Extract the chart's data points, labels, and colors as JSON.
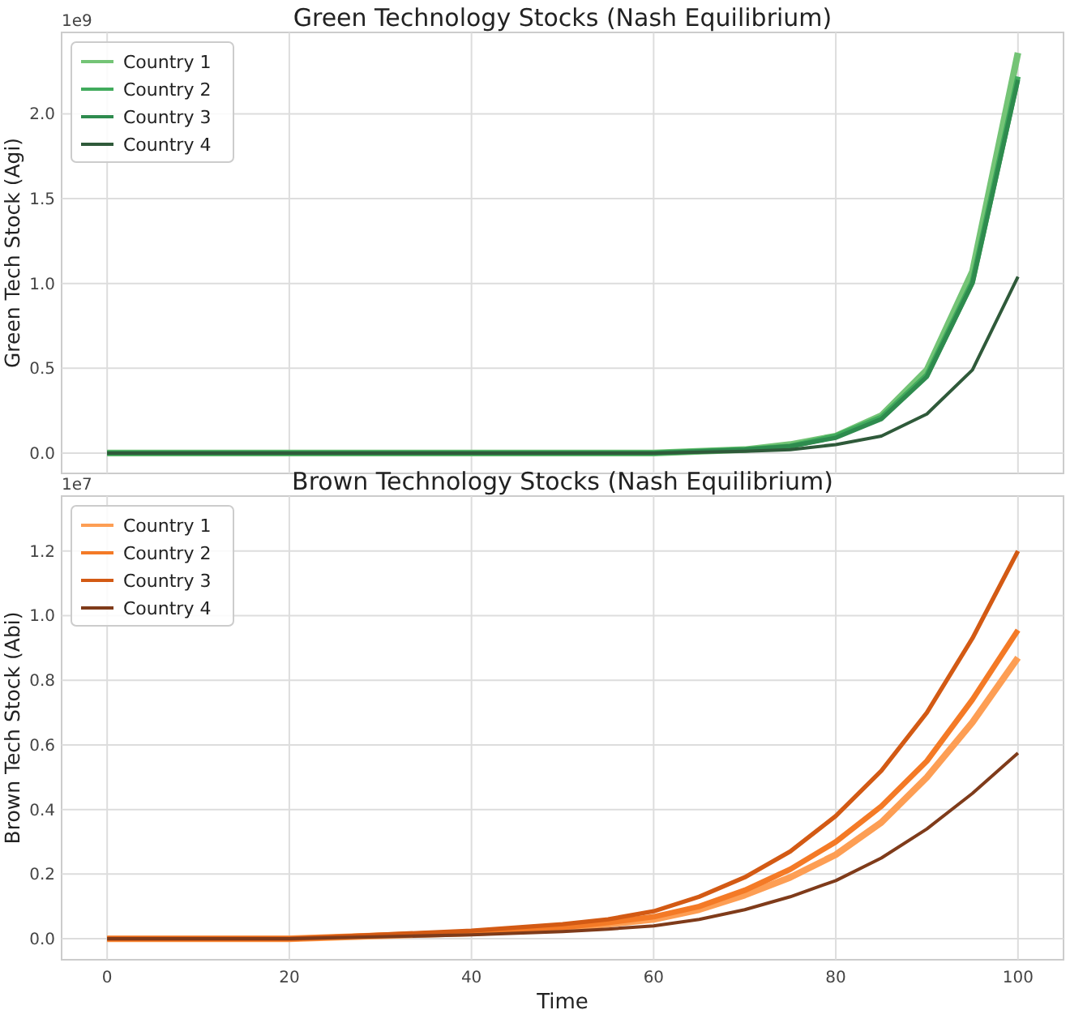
{
  "chart_data": [
    {
      "type": "line",
      "title": "Green Technology Stocks (Nash Equilibrium)",
      "ylabel": "Green Tech Stock (Agi)",
      "annotations": [
        "1e9"
      ],
      "legend": "top left",
      "grid": true,
      "line_style": "solid",
      "tick_labels": "y",
      "x": [
        0,
        40,
        60,
        70,
        75,
        80,
        85,
        90,
        95,
        100
      ],
      "xlim": [
        -5,
        105
      ],
      "xticks": [
        {
          "value": 0,
          "label": null
        },
        {
          "value": 20,
          "label": null
        },
        {
          "value": 40,
          "label": null
        },
        {
          "value": 60,
          "label": null
        },
        {
          "value": 80,
          "label": null
        },
        {
          "value": 100,
          "label": null
        }
      ],
      "ylim": [
        -0.12,
        2.48
      ],
      "yticks": [
        {
          "value": 0,
          "label": "0.0"
        },
        {
          "value": 0.5,
          "label": "0.5"
        },
        {
          "value": 1,
          "label": "1.0"
        },
        {
          "value": 1.5,
          "label": "1.5"
        },
        {
          "value": 2,
          "label": "2.0"
        }
      ],
      "series": [
        {
          "name": "Country 1",
          "color": "#74c476",
          "values": [
            0,
            0,
            0,
            0.02,
            0.05,
            0.1,
            0.22,
            0.49,
            1.07,
            2.36
          ]
        },
        {
          "name": "Country 2",
          "color": "#41ab5d",
          "values": [
            0,
            0,
            0,
            0.02,
            0.04,
            0.1,
            0.21,
            0.46,
            1.01,
            2.22
          ]
        },
        {
          "name": "Country 3",
          "color": "#2e8b4e",
          "values": [
            0,
            0,
            0,
            0.02,
            0.04,
            0.09,
            0.2,
            0.45,
            1.0,
            2.2
          ]
        },
        {
          "name": "Country 4",
          "color": "#2f5a3a",
          "values": [
            0,
            0,
            0,
            0.01,
            0.02,
            0.05,
            0.1,
            0.23,
            0.49,
            1.04
          ]
        }
      ]
    },
    {
      "type": "line",
      "title": "Brown Technology Stocks (Nash Equilibrium)",
      "ylabel": "Brown Tech Stock (Abi)",
      "xlabel": "Time",
      "annotations": [
        "1e7"
      ],
      "legend": "top left",
      "grid": true,
      "line_style": "solid",
      "x": [
        0,
        20,
        40,
        50,
        55,
        60,
        65,
        70,
        75,
        80,
        85,
        90,
        95,
        100
      ],
      "xlim": [
        -5,
        105
      ],
      "xticks": [
        0,
        20,
        40,
        60,
        80,
        100
      ],
      "ylim": [
        -0.065,
        1.37
      ],
      "yticks": [
        {
          "value": 0,
          "label": "0.0"
        },
        {
          "value": 0.2,
          "label": "0.2"
        },
        {
          "value": 0.4,
          "label": "0.4"
        },
        {
          "value": 0.6,
          "label": "0.6"
        },
        {
          "value": 0.8,
          "label": "0.8"
        },
        {
          "value": 1,
          "label": "1.0"
        },
        {
          "value": 1.2,
          "label": "1.2"
        }
      ],
      "series": [
        {
          "name": "Country 1",
          "color": "#fd9e54",
          "values": [
            0,
            0,
            0.018,
            0.032,
            0.045,
            0.06,
            0.09,
            0.135,
            0.19,
            0.26,
            0.36,
            0.5,
            0.67,
            0.87
          ]
        },
        {
          "name": "Country 2",
          "color": "#f47a26",
          "values": [
            0,
            0,
            0.02,
            0.035,
            0.05,
            0.068,
            0.1,
            0.15,
            0.215,
            0.3,
            0.41,
            0.55,
            0.74,
            0.955
          ]
        },
        {
          "name": "Country 3",
          "color": "#d35a14",
          "values": [
            0,
            0,
            0.025,
            0.045,
            0.06,
            0.085,
            0.13,
            0.19,
            0.27,
            0.38,
            0.52,
            0.7,
            0.93,
            1.2
          ]
        },
        {
          "name": "Country 4",
          "color": "#7f3b1a",
          "values": [
            0,
            0,
            0.012,
            0.022,
            0.03,
            0.04,
            0.06,
            0.09,
            0.13,
            0.18,
            0.25,
            0.34,
            0.45,
            0.575
          ]
        }
      ]
    }
  ]
}
